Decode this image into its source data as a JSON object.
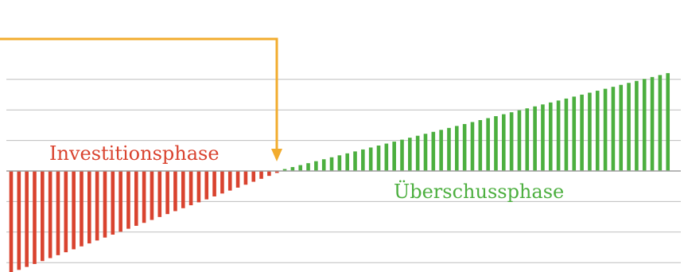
{
  "chart_data": {
    "type": "bar",
    "title": "",
    "xlabel": "",
    "ylabel": "",
    "grid": true,
    "x_count": 85,
    "ylim": [
      -1.0,
      1.0
    ],
    "gridlines_y": [
      -0.9,
      -0.6,
      -0.3,
      0.3,
      0.6,
      0.9
    ],
    "series": [
      {
        "values": [
          -1.0,
          -0.9712,
          -0.9423,
          -0.9135,
          -0.8846,
          -0.8558,
          -0.8269,
          -0.7981,
          -0.7692,
          -0.7404,
          -0.7115,
          -0.6827,
          -0.6538,
          -0.625,
          -0.5962,
          -0.5673,
          -0.5385,
          -0.5096,
          -0.4808,
          -0.4519,
          -0.4231,
          -0.3942,
          -0.3654,
          -0.3365,
          -0.3077,
          -0.2788,
          -0.25,
          -0.2212,
          -0.1923,
          -0.1635,
          -0.1346,
          -0.1058,
          -0.0769,
          -0.0481,
          -0.0192
        ],
        "color": "#d9432f"
      },
      {
        "values": [
          0.0192,
          0.0385,
          0.0577,
          0.0769,
          0.0962,
          0.1154,
          0.1346,
          0.1538,
          0.1731,
          0.1923,
          0.2115,
          0.2308,
          0.25,
          0.2692,
          0.2885,
          0.3077,
          0.3269,
          0.3462,
          0.3654,
          0.3846,
          0.4038,
          0.4231,
          0.4423,
          0.4615,
          0.4808,
          0.5,
          0.5192,
          0.5385,
          0.5577,
          0.5769,
          0.5962,
          0.6154,
          0.6346,
          0.6538,
          0.6731,
          0.6923,
          0.7115,
          0.7308,
          0.75,
          0.7692,
          0.7885,
          0.8077,
          0.8269,
          0.8462,
          0.8654,
          0.8846,
          0.9038,
          0.9231,
          0.9423,
          0.9615
        ],
        "color": "#4caf3f"
      }
    ],
    "annotations": [
      {
        "text": "Investitionsphase",
        "color": "#d9432f"
      },
      {
        "text": "Überschussphase",
        "color": "#4caf3f"
      }
    ],
    "arrow_color": "#f2ac2e"
  }
}
